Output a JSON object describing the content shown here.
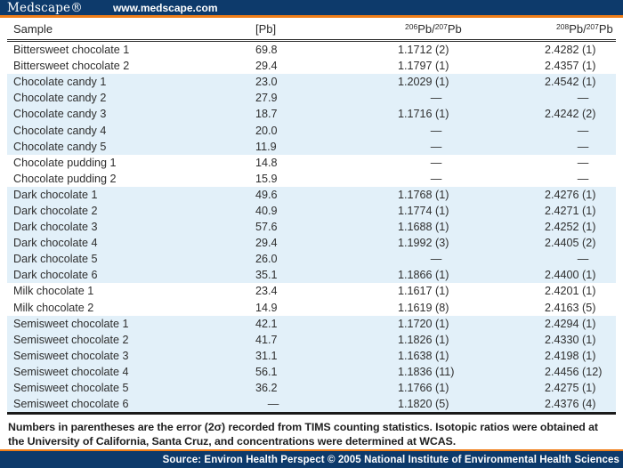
{
  "header": {
    "logo": "Medscape®",
    "url": "www.medscape.com"
  },
  "table": {
    "headers": {
      "sample": "Sample",
      "pb": "[Pb]",
      "r67": {
        "sup1": "206",
        "base1": "Pb/",
        "sup2": "207",
        "base2": "Pb"
      },
      "r87": {
        "sup1": "208",
        "base1": "Pb/",
        "sup2": "207",
        "base2": "Pb"
      }
    }
  },
  "chart_data": {
    "type": "table",
    "columns": [
      "Sample",
      "[Pb]",
      "206Pb/207Pb",
      "208Pb/207Pb"
    ],
    "rows": [
      {
        "sample": "Bittersweet chocolate 1",
        "pb": "69.8",
        "pb206_207": "1.1712 (2)",
        "pb208_207": "2.4282 (1)",
        "shaded": false
      },
      {
        "sample": "Bittersweet chocolate 2",
        "pb": "29.4",
        "pb206_207": "1.1797 (1)",
        "pb208_207": "2.4357 (1)",
        "shaded": false
      },
      {
        "sample": "Chocolate candy 1",
        "pb": "23.0",
        "pb206_207": "1.2029 (1)",
        "pb208_207": "2.4542 (1)",
        "shaded": true
      },
      {
        "sample": "Chocolate candy 2",
        "pb": "27.9",
        "pb206_207": "—",
        "pb208_207": "—",
        "shaded": true
      },
      {
        "sample": "Chocolate candy 3",
        "pb": "18.7",
        "pb206_207": "1.1716 (1)",
        "pb208_207": "2.4242 (2)",
        "shaded": true
      },
      {
        "sample": "Chocolate candy 4",
        "pb": "20.0",
        "pb206_207": "—",
        "pb208_207": "—",
        "shaded": true
      },
      {
        "sample": "Chocolate candy 5",
        "pb": "11.9",
        "pb206_207": "—",
        "pb208_207": "—",
        "shaded": true
      },
      {
        "sample": "Chocolate pudding 1",
        "pb": "14.8",
        "pb206_207": "—",
        "pb208_207": "—",
        "shaded": false
      },
      {
        "sample": "Chocolate pudding 2",
        "pb": "15.9",
        "pb206_207": "—",
        "pb208_207": "—",
        "shaded": false
      },
      {
        "sample": "Dark chocolate 1",
        "pb": "49.6",
        "pb206_207": "1.1768 (1)",
        "pb208_207": "2.4276 (1)",
        "shaded": true
      },
      {
        "sample": "Dark chocolate 2",
        "pb": "40.9",
        "pb206_207": "1.1774 (1)",
        "pb208_207": "2.4271 (1)",
        "shaded": true
      },
      {
        "sample": "Dark chocolate 3",
        "pb": "57.6",
        "pb206_207": "1.1688 (1)",
        "pb208_207": "2.4252 (1)",
        "shaded": true
      },
      {
        "sample": "Dark chocolate 4",
        "pb": "29.4",
        "pb206_207": "1.1992 (3)",
        "pb208_207": "2.4405 (2)",
        "shaded": true
      },
      {
        "sample": "Dark chocolate 5",
        "pb": "26.0",
        "pb206_207": "—",
        "pb208_207": "—",
        "shaded": true
      },
      {
        "sample": "Dark chocolate 6",
        "pb": "35.1",
        "pb206_207": "1.1866 (1)",
        "pb208_207": "2.4400 (1)",
        "shaded": true
      },
      {
        "sample": "Milk chocolate 1",
        "pb": "23.4",
        "pb206_207": "1.1617 (1)",
        "pb208_207": "2.4201 (1)",
        "shaded": false
      },
      {
        "sample": "Milk chocolate 2",
        "pb": "14.9",
        "pb206_207": "1.1619 (8)",
        "pb208_207": "2.4163 (5)",
        "shaded": false
      },
      {
        "sample": "Semisweet chocolate 1",
        "pb": "42.1",
        "pb206_207": "1.1720 (1)",
        "pb208_207": "2.4294 (1)",
        "shaded": true
      },
      {
        "sample": "Semisweet chocolate 2",
        "pb": "41.7",
        "pb206_207": "1.1826 (1)",
        "pb208_207": "2.4330 (1)",
        "shaded": true
      },
      {
        "sample": "Semisweet chocolate 3",
        "pb": "31.1",
        "pb206_207": "1.1638 (1)",
        "pb208_207": "2.4198 (1)",
        "shaded": true
      },
      {
        "sample": "Semisweet chocolate 4",
        "pb": "56.1",
        "pb206_207": "1.1836 (11)",
        "pb208_207": "2.4456 (12)",
        "shaded": true
      },
      {
        "sample": "Semisweet chocolate 5",
        "pb": "36.2",
        "pb206_207": "1.1766 (1)",
        "pb208_207": "2.4275 (1)",
        "shaded": true
      },
      {
        "sample": "Semisweet chocolate 6",
        "pb": "—",
        "pb206_207": "1.1820 (5)",
        "pb208_207": "2.4376 (4)",
        "shaded": true
      }
    ]
  },
  "footnote": "Numbers in parentheses are the error (2σ) recorded from TIMS counting statistics. Isotopic ratios were obtained at the University of California, Santa Cruz, and concentrations were determined at WCAS.",
  "footer": {
    "source": "Source: Environ Health Perspect © 2005 National Institute of Environmental Health Sciences"
  },
  "colors": {
    "navy": "#0d3a6b",
    "orange": "#ef7d17",
    "row_shade": "#e2f0f9"
  }
}
